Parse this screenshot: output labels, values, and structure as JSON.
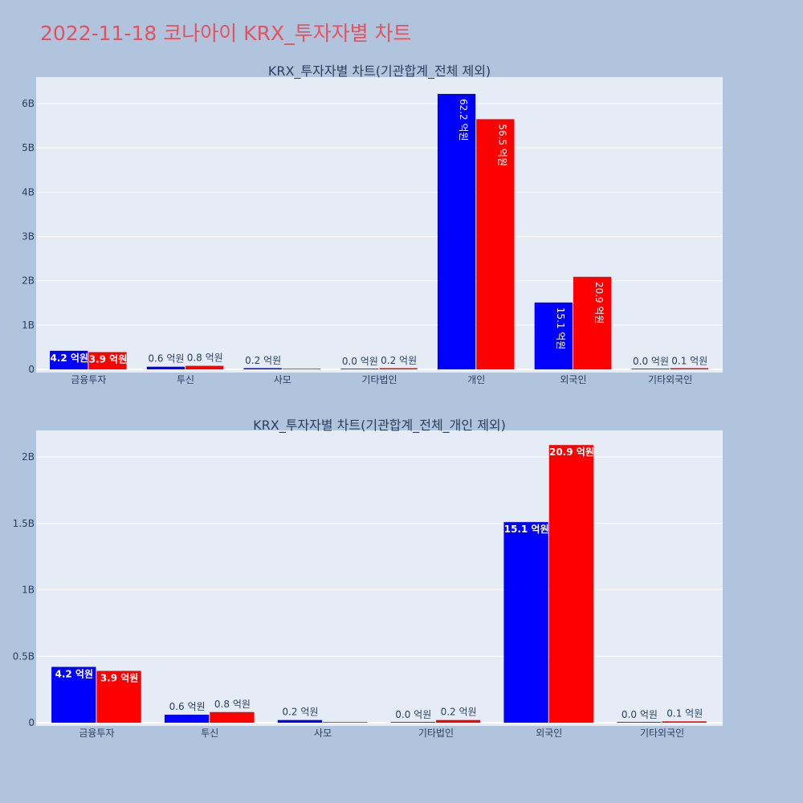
{
  "page": {
    "title": "2022-11-18 코나아이 KRX_투자자별 차트"
  },
  "colors": {
    "background": "#b0c4de",
    "plot_bg": "#e5ecf6",
    "series_a": "#0000ff",
    "series_b": "#ff0000",
    "title": "#e8505b"
  },
  "chart_data": [
    {
      "type": "bar",
      "title": "KRX_투자자별 차트(기관합계_전체 제외)",
      "categories": [
        "금융투자",
        "투신",
        "사모",
        "기타법인",
        "개인",
        "외국인",
        "기타외국인"
      ],
      "series": [
        {
          "color": "#0000ff",
          "values": [
            420000000,
            60000000,
            20000000,
            0,
            6220000000,
            1510000000,
            0
          ],
          "labels": [
            "4.2 억원",
            "0.6 억원",
            "0.2 억원",
            "0.0 억원",
            "62.2 억원",
            "15.1 억원",
            "0.0 억원"
          ]
        },
        {
          "color": "#ff0000",
          "values": [
            390000000,
            80000000,
            0,
            20000000,
            5650000000,
            2090000000,
            10000000
          ],
          "labels": [
            "3.9 억원",
            "0.8 억원",
            "",
            "0.2 억원",
            "56.5 억원",
            "20.9 억원",
            "0.1 억원"
          ]
        }
      ],
      "ylim": [
        0,
        6600000000
      ],
      "yticks": [
        0,
        1000000000,
        2000000000,
        3000000000,
        4000000000,
        5000000000,
        6000000000
      ],
      "yticklabels": [
        "0",
        "1B",
        "2B",
        "3B",
        "4B",
        "5B",
        "6B"
      ],
      "grid": true
    },
    {
      "type": "bar",
      "title": "KRX_투자자별 차트(기관합계_전체_개인 제외)",
      "categories": [
        "금융투자",
        "투신",
        "사모",
        "기타법인",
        "외국인",
        "기타외국인"
      ],
      "series": [
        {
          "color": "#0000ff",
          "values": [
            420000000,
            60000000,
            20000000,
            0,
            1510000000,
            0
          ],
          "labels": [
            "4.2 억원",
            "0.6 억원",
            "0.2 억원",
            "0.0 억원",
            "15.1 억원",
            "0.0 억원"
          ]
        },
        {
          "color": "#ff0000",
          "values": [
            390000000,
            80000000,
            0,
            20000000,
            2090000000,
            10000000
          ],
          "labels": [
            "3.9 억원",
            "0.8 억원",
            "",
            "0.2 억원",
            "20.9 억원",
            "0.1 억원"
          ]
        }
      ],
      "ylim": [
        0,
        2200000000
      ],
      "yticks": [
        0,
        500000000,
        1000000000,
        1500000000,
        2000000000
      ],
      "yticklabels": [
        "0",
        "0.5B",
        "1B",
        "1.5B",
        "2B"
      ],
      "grid": true
    }
  ]
}
